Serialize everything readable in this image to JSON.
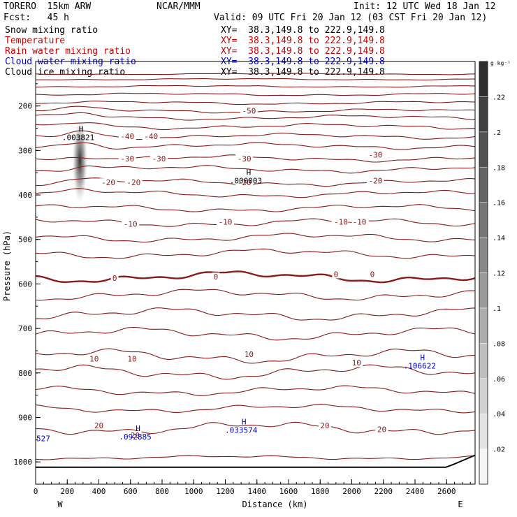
{
  "header": {
    "model": "TORERO  15km ARW",
    "fcst": "Fcst:   45 h",
    "center": "NCAR/MMM",
    "init": "Init: 12 UTC Wed 18 Jan 12",
    "valid": "Valid: 09 UTC Fri 20 Jan 12 (03 CST Fri 20 Jan 12)"
  },
  "fields": [
    {
      "name": "Snow mixing ratio",
      "xy": "XY=  38.3,149.8 to 222.9,149.8",
      "color": "#000000"
    },
    {
      "name": "Temperature",
      "xy": "XY=  38.3,149.8 to 222.9,149.8",
      "color": "#cc0000"
    },
    {
      "name": "Rain water mixing ratio",
      "xy": "XY=  38.3,149.8 to 222.9,149.8",
      "color": "#cc0000"
    },
    {
      "name": "Cloud water mixing ratio",
      "xy": "XY=  38.3,149.8 to 222.9,149.8",
      "color": "#0000cc"
    },
    {
      "name": "Cloud ice mixing ratio",
      "xy": "XY=  38.3,149.8 to 222.9,149.8",
      "color": "#000000"
    }
  ],
  "chart_data": {
    "type": "cross-section contour",
    "xlabel": "Distance (km)",
    "ylabel": "Pressure (hPa)",
    "xlim": [
      0,
      2780
    ],
    "ylim": [
      1050,
      100
    ],
    "x_ticks": [
      0,
      200,
      400,
      600,
      800,
      1000,
      1200,
      1400,
      1600,
      1800,
      2000,
      2200,
      2400,
      2600
    ],
    "y_ticks": [
      200,
      300,
      400,
      500,
      600,
      700,
      800,
      900,
      1000
    ],
    "x_end_labels": {
      "west": "W",
      "east": "E"
    },
    "colorbar": {
      "unit": "g kg⁻¹",
      "ticks": [
        ".02",
        ".04",
        ".06",
        ".08",
        ".1",
        ".12",
        ".14",
        ".16",
        ".18",
        ".2",
        ".22"
      ]
    },
    "isotherm_levels_degC": [
      -50,
      -40,
      -30,
      -20,
      -10,
      0,
      10,
      20
    ],
    "isotherm_color": "#8b1a1a",
    "isotherm_labels": [
      {
        "text": "-50",
        "x": 1350,
        "p": 211
      },
      {
        "text": "-40",
        "x": 580,
        "p": 268
      },
      {
        "text": "-40",
        "x": 730,
        "p": 268
      },
      {
        "text": "-30",
        "x": 580,
        "p": 318
      },
      {
        "text": "-30",
        "x": 780,
        "p": 318
      },
      {
        "text": "-30",
        "x": 1320,
        "p": 318
      },
      {
        "text": "-30",
        "x": 2150,
        "p": 310
      },
      {
        "text": "-20",
        "x": 460,
        "p": 372
      },
      {
        "text": "-20",
        "x": 620,
        "p": 372
      },
      {
        "text": "-20",
        "x": 1320,
        "p": 372
      },
      {
        "text": "-20",
        "x": 2150,
        "p": 368
      },
      {
        "text": "-10",
        "x": 600,
        "p": 465
      },
      {
        "text": "-10",
        "x": 1200,
        "p": 460
      },
      {
        "text": "-10~-10",
        "x": 1990,
        "p": 460
      },
      {
        "text": "0",
        "x": 500,
        "p": 587
      },
      {
        "text": "0",
        "x": 1140,
        "p": 584
      },
      {
        "text": "0",
        "x": 1900,
        "p": 578
      },
      {
        "text": "0",
        "x": 2130,
        "p": 578
      },
      {
        "text": "10",
        "x": 370,
        "p": 768
      },
      {
        "text": "10",
        "x": 610,
        "p": 768
      },
      {
        "text": "10",
        "x": 1350,
        "p": 758
      },
      {
        "text": "10",
        "x": 2030,
        "p": 777
      },
      {
        "text": "20",
        "x": 400,
        "p": 918
      },
      {
        "text": "20",
        "x": 630,
        "p": 940
      },
      {
        "text": "20",
        "x": 1830,
        "p": 918
      },
      {
        "text": "20",
        "x": 2190,
        "p": 927
      }
    ],
    "maxima": [
      {
        "label": "H",
        "value": ".003821",
        "x": 270,
        "p": 270,
        "color": "#000000"
      },
      {
        "label": "H",
        "value": ".000003",
        "x": 1330,
        "p": 368,
        "color": "#000000"
      },
      {
        "label": "H",
        "value": ".106622",
        "x": 2430,
        "p": 784,
        "color": "#0000cc"
      },
      {
        "label": "H",
        "value": ".033574",
        "x": 1300,
        "p": 928,
        "color": "#0000cc"
      },
      {
        "label": "H",
        "value": ".092885",
        "x": 630,
        "p": 943,
        "color": "#0000cc"
      },
      {
        "label": "",
        "value": "527",
        "x": 0,
        "p": 947,
        "color": "#0000cc"
      }
    ],
    "snow_column": {
      "x": 280,
      "p_top": 250,
      "p_bottom": 415,
      "peak_mixing_ratio": 0.004
    }
  }
}
